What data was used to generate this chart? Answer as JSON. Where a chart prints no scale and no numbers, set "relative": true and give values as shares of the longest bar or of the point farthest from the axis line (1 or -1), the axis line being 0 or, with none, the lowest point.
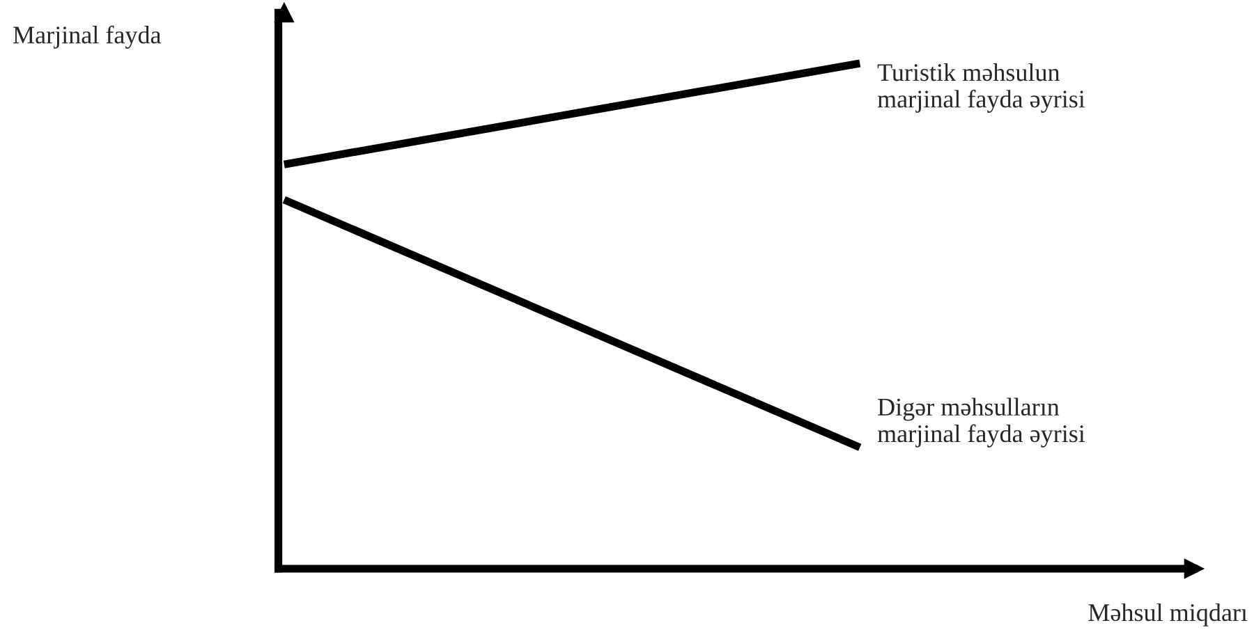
{
  "chart_data": {
    "type": "line",
    "relative": true,
    "xlabel": "Məhsul miqdarı",
    "ylabel": "Marjinal fayda",
    "categories": [
      null,
      null
    ],
    "series": [
      {
        "name": "Turistik məhsulun\nmarjinal fayda əyrisi",
        "color": "#000000",
        "values": [
          0.8,
          1
        ]
      },
      {
        "name": "Digər məhsulların\nmarjinal fayda əyrisi",
        "color": "#000000",
        "values": [
          0.73,
          0.24
        ]
      }
    ],
    "legend": false
  }
}
